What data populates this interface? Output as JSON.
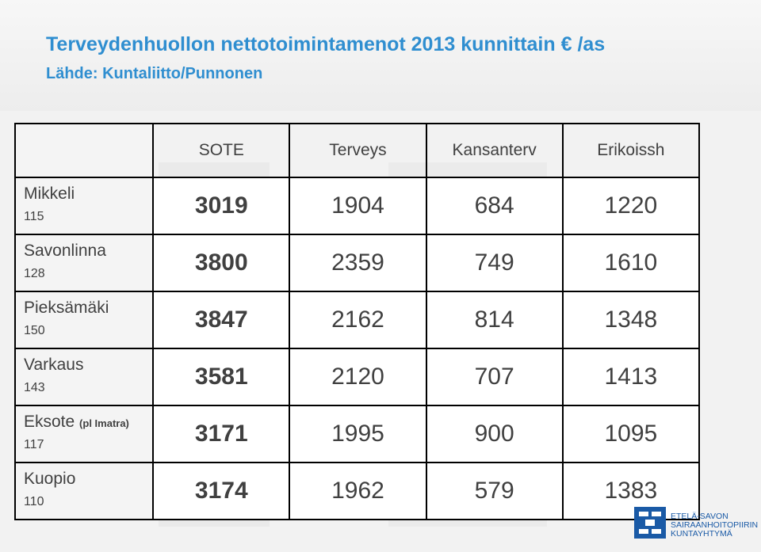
{
  "slide": {
    "title": "Terveydenhuollon nettotoimintamenot 2013 kunnittain  € /as",
    "subtitle": "Lähde: Kuntaliitto/Punnonen"
  },
  "table": {
    "columns": [
      "SOTE",
      "Terveys",
      "Kansanterv",
      "Erikoissh"
    ],
    "rows": [
      {
        "name": "Mikkeli",
        "note": "",
        "num": "115",
        "values": [
          "3019",
          "1904",
          "684",
          "1220"
        ]
      },
      {
        "name": "Savonlinna",
        "note": "",
        "num": "128",
        "values": [
          "3800",
          "2359",
          "749",
          "1610"
        ]
      },
      {
        "name": "Pieksämäki",
        "note": "",
        "num": "150",
        "values": [
          "3847",
          "2162",
          "814",
          "1348"
        ]
      },
      {
        "name": "Varkaus",
        "note": "",
        "num": "143",
        "values": [
          "3581",
          "2120",
          "707",
          "1413"
        ]
      },
      {
        "name": "Eksote",
        "note": "(pl Imatra)",
        "num": "117",
        "values": [
          "3171",
          "1995",
          "900",
          "1095"
        ]
      },
      {
        "name": "Kuopio",
        "note": "",
        "num": "110",
        "values": [
          "3174",
          "1962",
          "579",
          "1383"
        ]
      }
    ],
    "colors": {
      "green": "#b2d1b0",
      "pink": "#d9a9a6",
      "red": "#bd4a48"
    }
  },
  "logo": {
    "icon": "hospital-district-logo-icon",
    "line1": "ETELÄ-SAVON",
    "line2": "SAIRAANHOITOPIIRIN",
    "line3": "KUNTAYHTYMÄ"
  }
}
